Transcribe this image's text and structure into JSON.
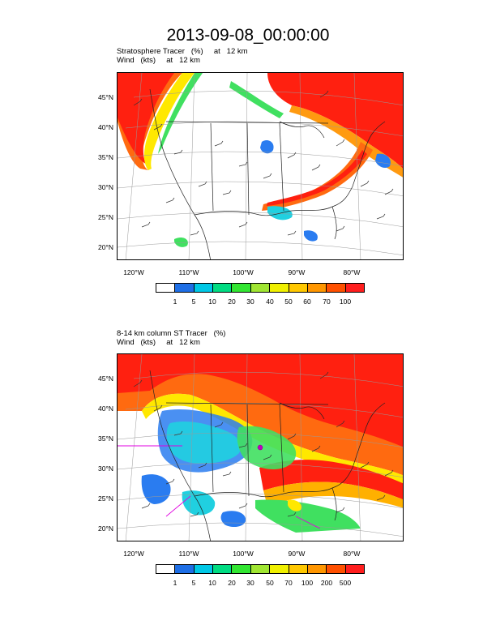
{
  "page": {
    "title": "2013-09-08_00:00:00"
  },
  "panels": [
    {
      "subtitle_line1": "Stratosphere Tracer   (%)     at   12 km",
      "subtitle_line2": "Wind   (kts)     at   12 km",
      "lat_labels": [
        "45°N",
        "40°N",
        "35°N",
        "30°N",
        "25°N",
        "20°N"
      ],
      "lon_labels": [
        "120°W",
        "110°W",
        "100°W",
        "90°W",
        "80°W"
      ],
      "colorbar_labels": [
        "1",
        "5",
        "10",
        "20",
        "30",
        "40",
        "50",
        "60",
        "70",
        "100"
      ]
    },
    {
      "subtitle_line1": "8-14 km column ST Tracer   (%)",
      "subtitle_line2": "Wind   (kts)     at   12 km",
      "lat_labels": [
        "45°N",
        "40°N",
        "35°N",
        "30°N",
        "25°N",
        "20°N"
      ],
      "lon_labels": [
        "120°W",
        "110°W",
        "100°W",
        "90°W",
        "80°W"
      ],
      "colorbar_labels": [
        "1",
        "5",
        "10",
        "20",
        "30",
        "50",
        "70",
        "100",
        "200",
        "500"
      ]
    }
  ],
  "colorbar_colors": [
    "#ffffff",
    "#1e6fe6",
    "#00c8e6",
    "#00dc82",
    "#32e632",
    "#a0e632",
    "#f0f000",
    "#ffc800",
    "#ff9600",
    "#ff5000",
    "#ff1e1e"
  ],
  "colors": {
    "high": "#ff2010",
    "mid_high": "#ff6a10",
    "mid": "#ffb000",
    "low": "#ffe800",
    "green": "#40e060",
    "cyan": "#20d0e0",
    "blue": "#2a7cf0",
    "magenta": "#e000e0"
  }
}
